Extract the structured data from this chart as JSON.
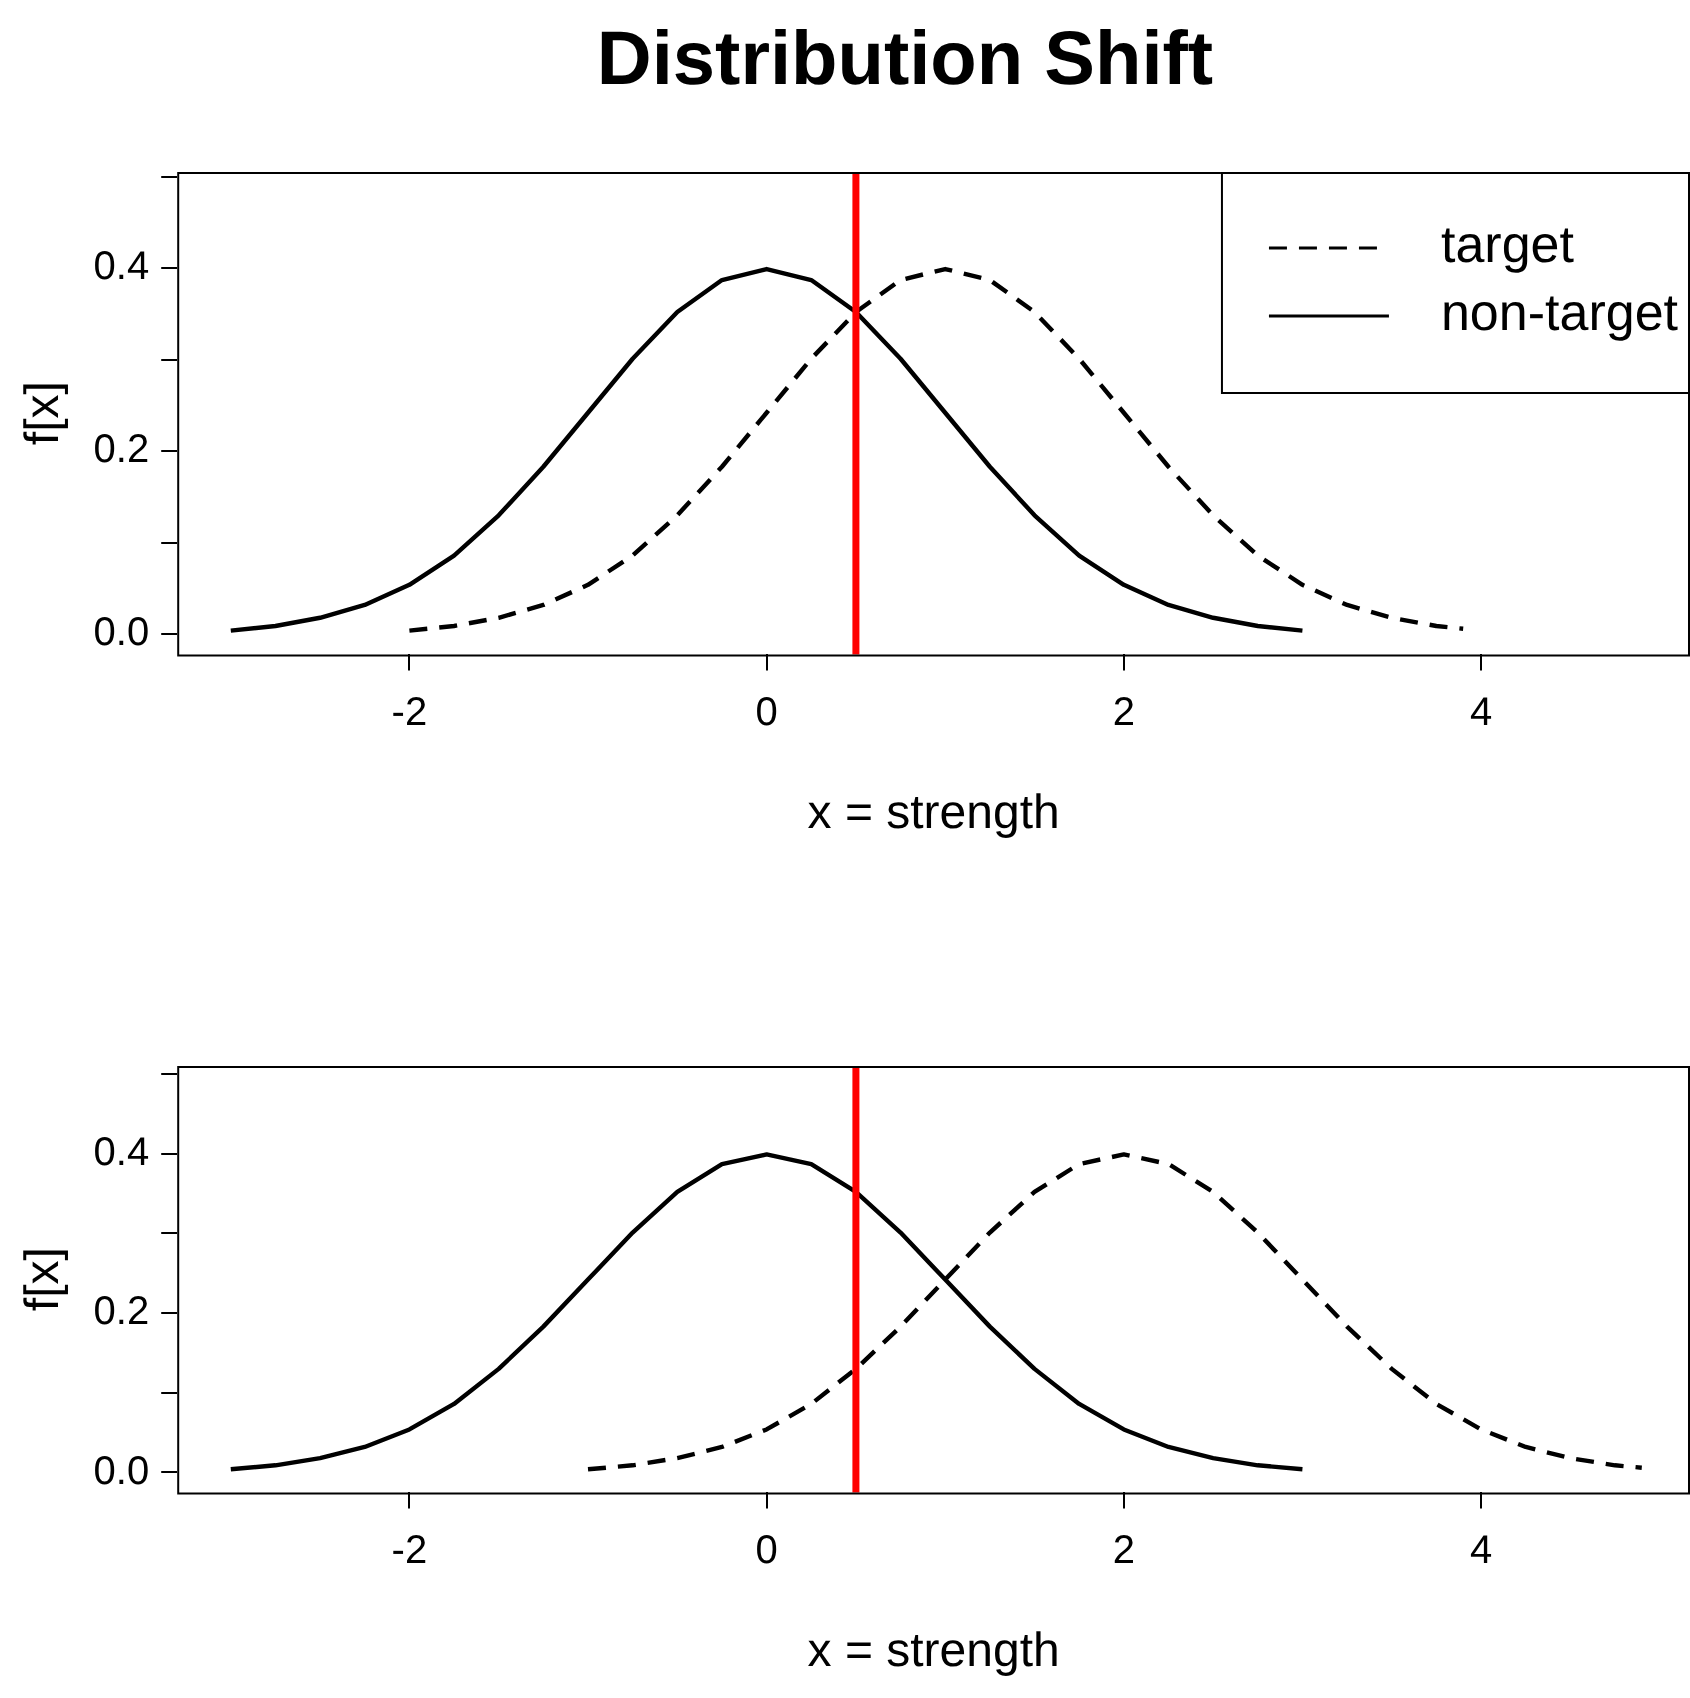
{
  "chart_data": [
    {
      "type": "line",
      "title": "Distribution Shift",
      "xlabel": "x = strength",
      "ylabel": "f[x]",
      "legend": "top right",
      "xlim": [
        -3.3,
        5.17
      ],
      "xticks": [
        -2,
        0,
        2,
        4
      ],
      "ylim": [
        -0.022,
        0.505
      ],
      "yticks": [
        {
          "value": 0,
          "label": "0.0"
        },
        {
          "value": 0.1,
          "label": null
        },
        {
          "value": 0.2,
          "label": "0.2"
        },
        {
          "value": 0.3,
          "label": null
        },
        {
          "value": 0.4,
          "label": "0.4"
        },
        {
          "value": 0.5,
          "label": null
        }
      ],
      "ref_lines": [
        {
          "axis": "x",
          "value": 0.5,
          "color": "#ff0000"
        }
      ],
      "series": [
        {
          "name": "target",
          "color": "#000000",
          "line_style": "dashed",
          "x": [
            -2,
            -1.75,
            -1.5,
            -1.25,
            -1,
            -0.75,
            -0.5,
            -0.25,
            0,
            0.25,
            0.5,
            0.75,
            1,
            1.25,
            1.5,
            1.75,
            2,
            2.25,
            2.5,
            2.75,
            3,
            3.25,
            3.5,
            3.75,
            3.9
          ],
          "values": [
            0.004,
            0.009,
            0.018,
            0.032,
            0.054,
            0.086,
            0.13,
            0.183,
            0.242,
            0.301,
            0.352,
            0.387,
            0.399,
            0.387,
            0.352,
            0.301,
            0.242,
            0.183,
            0.13,
            0.086,
            0.054,
            0.032,
            0.018,
            0.009,
            0.006
          ]
        },
        {
          "name": "non-target",
          "color": "#000000",
          "line_style": "solid",
          "x": [
            -3,
            -2.75,
            -2.5,
            -2.25,
            -2,
            -1.75,
            -1.5,
            -1.25,
            -1,
            -0.75,
            -0.5,
            -0.25,
            0,
            0.25,
            0.5,
            0.75,
            1,
            1.25,
            1.5,
            1.75,
            2,
            2.25,
            2.5,
            2.75,
            3
          ],
          "values": [
            0.004,
            0.009,
            0.018,
            0.032,
            0.054,
            0.086,
            0.13,
            0.183,
            0.242,
            0.301,
            0.352,
            0.387,
            0.399,
            0.387,
            0.352,
            0.301,
            0.242,
            0.183,
            0.13,
            0.086,
            0.054,
            0.032,
            0.018,
            0.009,
            0.004
          ]
        }
      ]
    },
    {
      "type": "line",
      "xlabel": "x = strength",
      "ylabel": "f[x]",
      "xlim": [
        -3.3,
        5.17
      ],
      "xticks": [
        -2,
        0,
        2,
        4
      ],
      "ylim": [
        -0.025,
        0.51
      ],
      "yticks": [
        {
          "value": 0,
          "label": "0.0"
        },
        {
          "value": 0.1,
          "label": null
        },
        {
          "value": 0.2,
          "label": "0.2"
        },
        {
          "value": 0.3,
          "label": null
        },
        {
          "value": 0.4,
          "label": "0.4"
        },
        {
          "value": 0.5,
          "label": null
        }
      ],
      "ref_lines": [
        {
          "axis": "x",
          "value": 0.5,
          "color": "#ff0000"
        }
      ],
      "series": [
        {
          "color": "#000000",
          "line_style": "dashed",
          "x": [
            -1,
            -0.75,
            -0.5,
            -0.25,
            0,
            0.25,
            0.5,
            0.75,
            1,
            1.25,
            1.5,
            1.75,
            2,
            2.25,
            2.5,
            2.75,
            3,
            3.25,
            3.5,
            3.75,
            4,
            4.25,
            4.5,
            4.75,
            4.9
          ],
          "values": [
            0.004,
            0.009,
            0.018,
            0.032,
            0.054,
            0.086,
            0.13,
            0.183,
            0.242,
            0.301,
            0.352,
            0.387,
            0.399,
            0.387,
            0.352,
            0.301,
            0.242,
            0.183,
            0.13,
            0.086,
            0.054,
            0.032,
            0.018,
            0.009,
            0.006
          ]
        },
        {
          "color": "#000000",
          "line_style": "solid",
          "x": [
            -3,
            -2.75,
            -2.5,
            -2.25,
            -2,
            -1.75,
            -1.5,
            -1.25,
            -1,
            -0.75,
            -0.5,
            -0.25,
            0,
            0.25,
            0.5,
            0.75,
            1,
            1.25,
            1.5,
            1.75,
            2,
            2.25,
            2.5,
            2.75,
            3
          ],
          "values": [
            0.004,
            0.009,
            0.018,
            0.032,
            0.054,
            0.086,
            0.13,
            0.183,
            0.242,
            0.301,
            0.352,
            0.387,
            0.399,
            0.387,
            0.352,
            0.301,
            0.242,
            0.183,
            0.13,
            0.086,
            0.054,
            0.032,
            0.018,
            0.009,
            0.004
          ]
        }
      ]
    }
  ]
}
